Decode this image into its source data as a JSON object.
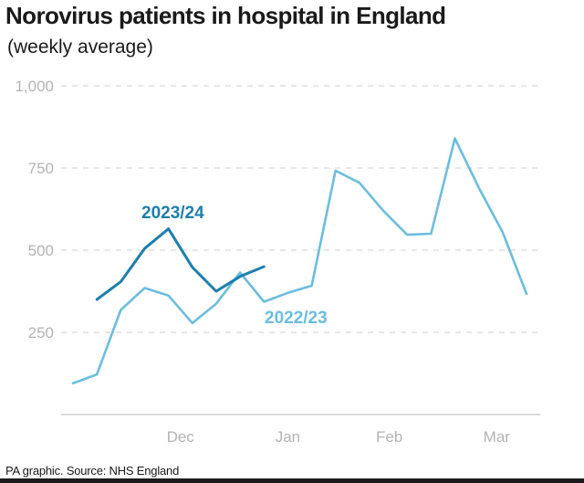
{
  "chart_data": {
    "type": "line",
    "title": "Norovirus patients in hospital in England",
    "subtitle": "(weekly average)",
    "ylim": [
      0,
      1000
    ],
    "yticks": [
      {
        "value": 1000,
        "label": "1,000"
      },
      {
        "value": 750,
        "label": "750"
      },
      {
        "value": 500,
        "label": "500"
      },
      {
        "value": 250,
        "label": "250"
      }
    ],
    "xlim": [
      0,
      21
    ],
    "xticks": [
      {
        "value": 4.5,
        "label": "Dec"
      },
      {
        "value": 9,
        "label": "Jan"
      },
      {
        "value": 13.25,
        "label": "Feb"
      },
      {
        "value": 17.75,
        "label": "Mar"
      }
    ],
    "grid": true,
    "series": [
      {
        "name": "2022/23",
        "color": "#6bbde0",
        "x": [
          0,
          1,
          2,
          3,
          4,
          5,
          6,
          7,
          8,
          9,
          10,
          11,
          12,
          13,
          14,
          15,
          16,
          17,
          18,
          19
        ],
        "values": [
          95,
          122,
          318,
          385,
          362,
          278,
          337,
          432,
          343,
          370,
          392,
          742,
          705,
          620,
          547,
          550,
          840,
          690,
          555,
          367
        ]
      },
      {
        "name": "2023/24",
        "color": "#1d7fae",
        "x": [
          1,
          2,
          3,
          4,
          5,
          6,
          7,
          8
        ],
        "values": [
          350,
          404,
          505,
          565,
          448,
          375,
          420,
          450
        ]
      }
    ],
    "source": "PA graphic. Source: NHS England"
  }
}
